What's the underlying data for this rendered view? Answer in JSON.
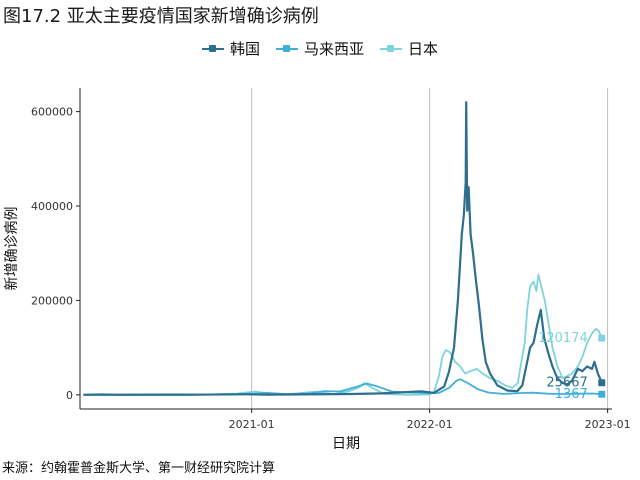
{
  "title": "图17.2 亚太主要疫情国家新增确诊病例",
  "source": "来源：约翰霍普金斯大学、第一财经研究院计算",
  "colors": {
    "korea": "#2e6e8e",
    "malaysia": "#3fb0d8",
    "japan": "#7ed3dc"
  },
  "chart_data": {
    "type": "line",
    "title": "图17.2 亚太主要疫情国家新增确诊病例",
    "xlabel": "日期",
    "ylabel": "新增确诊病例",
    "x_range": [
      "2020-01-22",
      "2022-12-20"
    ],
    "ylim": [
      -30000,
      650000
    ],
    "x_ticks": [
      {
        "date": "2021-01-01",
        "label": "2021-01"
      },
      {
        "date": "2022-01-01",
        "label": "2022-01"
      },
      {
        "date": "2023-01-01",
        "label": "2023-01"
      }
    ],
    "y_ticks": [
      0,
      200000,
      400000,
      600000
    ],
    "y_tick_labels": [
      "0",
      "200000",
      "400000",
      "600000"
    ],
    "grid": "vertical",
    "legend_position": "top",
    "series": [
      {
        "name": "韩国",
        "key": "korea",
        "points": [
          [
            "2020-01-22",
            0
          ],
          [
            "2020-03-01",
            800
          ],
          [
            "2020-04-01",
            100
          ],
          [
            "2020-09-01",
            300
          ],
          [
            "2020-12-20",
            1100
          ],
          [
            "2021-02-01",
            400
          ],
          [
            "2021-07-25",
            1800
          ],
          [
            "2021-09-25",
            3000
          ],
          [
            "2021-12-15",
            7500
          ],
          [
            "2022-01-10",
            4000
          ],
          [
            "2022-01-31",
            18000
          ],
          [
            "2022-02-10",
            50000
          ],
          [
            "2022-02-20",
            100000
          ],
          [
            "2022-02-28",
            200000
          ],
          [
            "2022-03-08",
            340000
          ],
          [
            "2022-03-12",
            380000
          ],
          [
            "2022-03-16",
            450000
          ],
          [
            "2022-03-17",
            620000
          ],
          [
            "2022-03-19",
            390000
          ],
          [
            "2022-03-22",
            440000
          ],
          [
            "2022-03-26",
            340000
          ],
          [
            "2022-03-31",
            300000
          ],
          [
            "2022-04-05",
            250000
          ],
          [
            "2022-04-12",
            190000
          ],
          [
            "2022-04-19",
            120000
          ],
          [
            "2022-04-26",
            70000
          ],
          [
            "2022-05-05",
            45000
          ],
          [
            "2022-05-20",
            20000
          ],
          [
            "2022-06-10",
            9000
          ],
          [
            "2022-06-30",
            8000
          ],
          [
            "2022-07-10",
            20000
          ],
          [
            "2022-07-20",
            70000
          ],
          [
            "2022-07-26",
            100000
          ],
          [
            "2022-08-02",
            110000
          ],
          [
            "2022-08-10",
            150000
          ],
          [
            "2022-08-17",
            180000
          ],
          [
            "2022-08-24",
            120000
          ],
          [
            "2022-09-01",
            90000
          ],
          [
            "2022-09-10",
            60000
          ],
          [
            "2022-09-20",
            35000
          ],
          [
            "2022-10-01",
            25000
          ],
          [
            "2022-10-10",
            22000
          ],
          [
            "2022-10-20",
            30000
          ],
          [
            "2022-11-01",
            55000
          ],
          [
            "2022-11-10",
            50000
          ],
          [
            "2022-11-20",
            60000
          ],
          [
            "2022-11-30",
            55000
          ],
          [
            "2022-12-05",
            70000
          ],
          [
            "2022-12-12",
            45000
          ],
          [
            "2022-12-20",
            25667
          ]
        ]
      },
      {
        "name": "马来西亚",
        "key": "malaysia",
        "points": [
          [
            "2020-01-22",
            0
          ],
          [
            "2020-04-05",
            200
          ],
          [
            "2020-09-01",
            100
          ],
          [
            "2020-10-15",
            1000
          ],
          [
            "2020-12-10",
            1800
          ],
          [
            "2021-01-15",
            3000
          ],
          [
            "2021-02-01",
            4000
          ],
          [
            "2021-03-15",
            1500
          ],
          [
            "2021-05-01",
            3000
          ],
          [
            "2021-05-30",
            8000
          ],
          [
            "2021-07-01",
            7000
          ],
          [
            "2021-08-01",
            16000
          ],
          [
            "2021-08-25",
            24000
          ],
          [
            "2021-09-15",
            18000
          ],
          [
            "2021-10-15",
            7000
          ],
          [
            "2021-11-20",
            5000
          ],
          [
            "2021-12-30",
            3500
          ],
          [
            "2022-01-20",
            4000
          ],
          [
            "2022-02-10",
            15000
          ],
          [
            "2022-02-25",
            30000
          ],
          [
            "2022-03-05",
            33000
          ],
          [
            "2022-03-20",
            25000
          ],
          [
            "2022-04-10",
            12000
          ],
          [
            "2022-05-01",
            5000
          ],
          [
            "2022-06-01",
            2000
          ],
          [
            "2022-07-15",
            4000
          ],
          [
            "2022-08-01",
            4500
          ],
          [
            "2022-09-01",
            2500
          ],
          [
            "2022-10-01",
            1800
          ],
          [
            "2022-11-01",
            2500
          ],
          [
            "2022-12-01",
            2800
          ],
          [
            "2022-12-20",
            1367
          ]
        ]
      },
      {
        "name": "日本",
        "key": "japan",
        "points": [
          [
            "2020-01-22",
            0
          ],
          [
            "2020-04-10",
            500
          ],
          [
            "2020-08-05",
            1500
          ],
          [
            "2020-09-20",
            500
          ],
          [
            "2020-12-01",
            2500
          ],
          [
            "2021-01-08",
            7000
          ],
          [
            "2021-02-10",
            2000
          ],
          [
            "2021-03-20",
            1500
          ],
          [
            "2021-05-10",
            6500
          ],
          [
            "2021-06-20",
            1500
          ],
          [
            "2021-07-20",
            8000
          ],
          [
            "2021-08-10",
            16000
          ],
          [
            "2021-08-20",
            25000
          ],
          [
            "2021-09-05",
            15000
          ],
          [
            "2021-09-30",
            1500
          ],
          [
            "2021-11-15",
            150
          ],
          [
            "2021-12-31",
            500
          ],
          [
            "2022-01-10",
            6000
          ],
          [
            "2022-01-20",
            40000
          ],
          [
            "2022-01-27",
            80000
          ],
          [
            "2022-02-03",
            95000
          ],
          [
            "2022-02-12",
            90000
          ],
          [
            "2022-02-22",
            70000
          ],
          [
            "2022-03-05",
            60000
          ],
          [
            "2022-03-15",
            45000
          ],
          [
            "2022-03-25",
            50000
          ],
          [
            "2022-04-08",
            55000
          ],
          [
            "2022-04-20",
            45000
          ],
          [
            "2022-05-05",
            35000
          ],
          [
            "2022-05-20",
            30000
          ],
          [
            "2022-06-05",
            20000
          ],
          [
            "2022-06-20",
            15000
          ],
          [
            "2022-07-01",
            25000
          ],
          [
            "2022-07-08",
            70000
          ],
          [
            "2022-07-15",
            110000
          ],
          [
            "2022-07-20",
            180000
          ],
          [
            "2022-07-26",
            230000
          ],
          [
            "2022-08-02",
            240000
          ],
          [
            "2022-08-08",
            220000
          ],
          [
            "2022-08-12",
            255000
          ],
          [
            "2022-08-18",
            230000
          ],
          [
            "2022-08-25",
            200000
          ],
          [
            "2022-09-02",
            150000
          ],
          [
            "2022-09-10",
            100000
          ],
          [
            "2022-09-20",
            60000
          ],
          [
            "2022-10-01",
            35000
          ],
          [
            "2022-10-10",
            40000
          ],
          [
            "2022-10-20",
            45000
          ],
          [
            "2022-11-01",
            60000
          ],
          [
            "2022-11-10",
            80000
          ],
          [
            "2022-11-20",
            110000
          ],
          [
            "2022-11-30",
            130000
          ],
          [
            "2022-12-08",
            140000
          ],
          [
            "2022-12-14",
            135000
          ],
          [
            "2022-12-20",
            120174
          ]
        ]
      }
    ],
    "end_labels": [
      {
        "series": "日本",
        "text": "120174"
      },
      {
        "series": "韩国",
        "text": "25667"
      },
      {
        "series": "马来西亚",
        "text": "1367"
      }
    ]
  }
}
